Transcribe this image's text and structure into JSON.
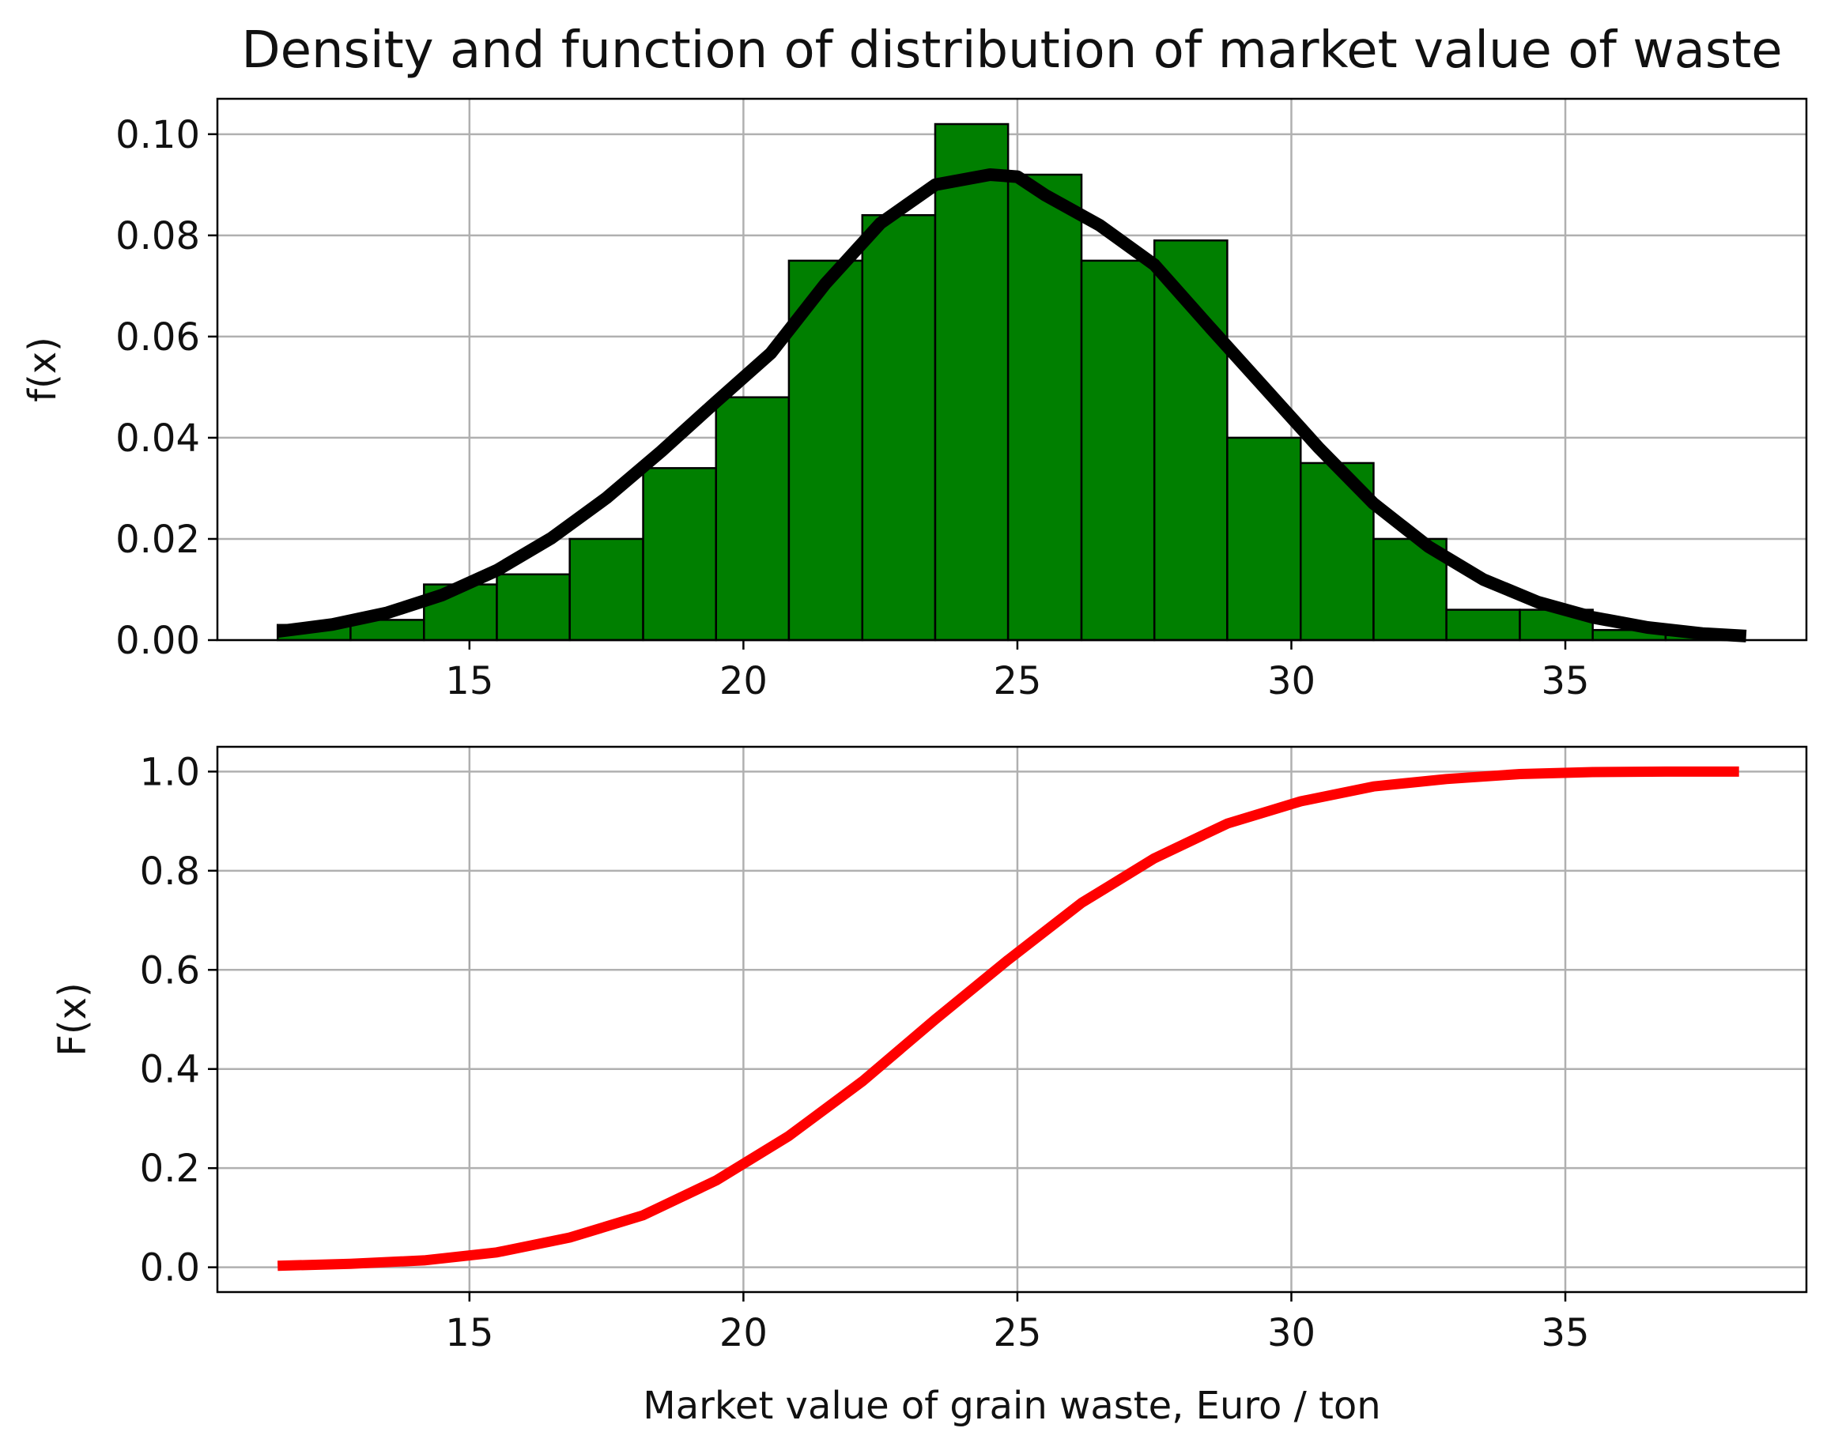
{
  "title": "Density and function of distribution of market value of waste",
  "xlabel": "Market value of grain waste, Euro / ton",
  "colors": {
    "bars": "#007f00",
    "bar_edge": "#000000",
    "pdf_line": "#000000",
    "cdf_line": "#ff0000",
    "grid": "#b0b0b0"
  },
  "chart_data": [
    {
      "type": "bar",
      "name": "density",
      "title": "Density and function of distribution of market value of waste",
      "xlabel": "",
      "ylabel": "f(x)",
      "xlim": [
        10.4,
        39.4
      ],
      "ylim": [
        0,
        0.107
      ],
      "xticks": [
        15,
        20,
        25,
        30,
        35
      ],
      "yticks": [
        "0.00",
        "0.02",
        "0.04",
        "0.06",
        "0.08",
        "0.10"
      ],
      "grid": true,
      "histogram": {
        "bin_edges": [
          11.5,
          12.83,
          14.17,
          15.5,
          16.83,
          18.17,
          19.5,
          20.83,
          22.17,
          23.5,
          24.83,
          26.17,
          27.5,
          28.83,
          30.17,
          31.5,
          32.83,
          34.17,
          35.5,
          36.83,
          38.17
        ],
        "values": [
          0.003,
          0.004,
          0.011,
          0.013,
          0.02,
          0.034,
          0.048,
          0.075,
          0.084,
          0.102,
          0.092,
          0.075,
          0.079,
          0.04,
          0.035,
          0.02,
          0.006,
          0.006,
          0.002,
          0.001
        ]
      },
      "line": {
        "x": [
          11.5,
          12.5,
          13.5,
          14.5,
          15.5,
          16.5,
          17.5,
          18.5,
          19.5,
          20.5,
          21.5,
          22.5,
          23.5,
          24.5,
          25,
          25.5,
          26.5,
          27.5,
          28.5,
          29.5,
          30.5,
          31.5,
          32.5,
          33.5,
          34.5,
          35.5,
          36.5,
          37.5,
          38.3
        ],
        "y": [
          0.0017,
          0.0031,
          0.0054,
          0.0089,
          0.0138,
          0.0202,
          0.0281,
          0.0373,
          0.0471,
          0.0567,
          0.0705,
          0.0824,
          0.09,
          0.092,
          0.0916,
          0.088,
          0.082,
          0.0742,
          0.062,
          0.05,
          0.038,
          0.027,
          0.0185,
          0.012,
          0.0075,
          0.0045,
          0.0025,
          0.0013,
          0.0008
        ]
      }
    },
    {
      "type": "line",
      "name": "distribution function",
      "title": "",
      "xlabel": "Market value of grain waste, Euro / ton",
      "ylabel": "F(x)",
      "xlim": [
        10.4,
        39.4
      ],
      "ylim": [
        -0.05,
        1.05
      ],
      "xticks": [
        15,
        20,
        25,
        30,
        35
      ],
      "yticks": [
        "0.0",
        "0.2",
        "0.4",
        "0.6",
        "0.8",
        "1.0"
      ],
      "grid": true,
      "x": [
        11.5,
        12.83,
        14.17,
        15.5,
        16.83,
        18.17,
        19.5,
        20.83,
        22.17,
        23.5,
        24.83,
        26.17,
        27.5,
        28.83,
        30.17,
        31.5,
        32.83,
        34.17,
        35.5,
        36.83,
        38.17
      ],
      "y": [
        0.003,
        0.007,
        0.014,
        0.03,
        0.06,
        0.105,
        0.175,
        0.265,
        0.375,
        0.5,
        0.62,
        0.735,
        0.825,
        0.895,
        0.94,
        0.97,
        0.985,
        0.995,
        0.999,
        1.0,
        1.0
      ]
    }
  ]
}
